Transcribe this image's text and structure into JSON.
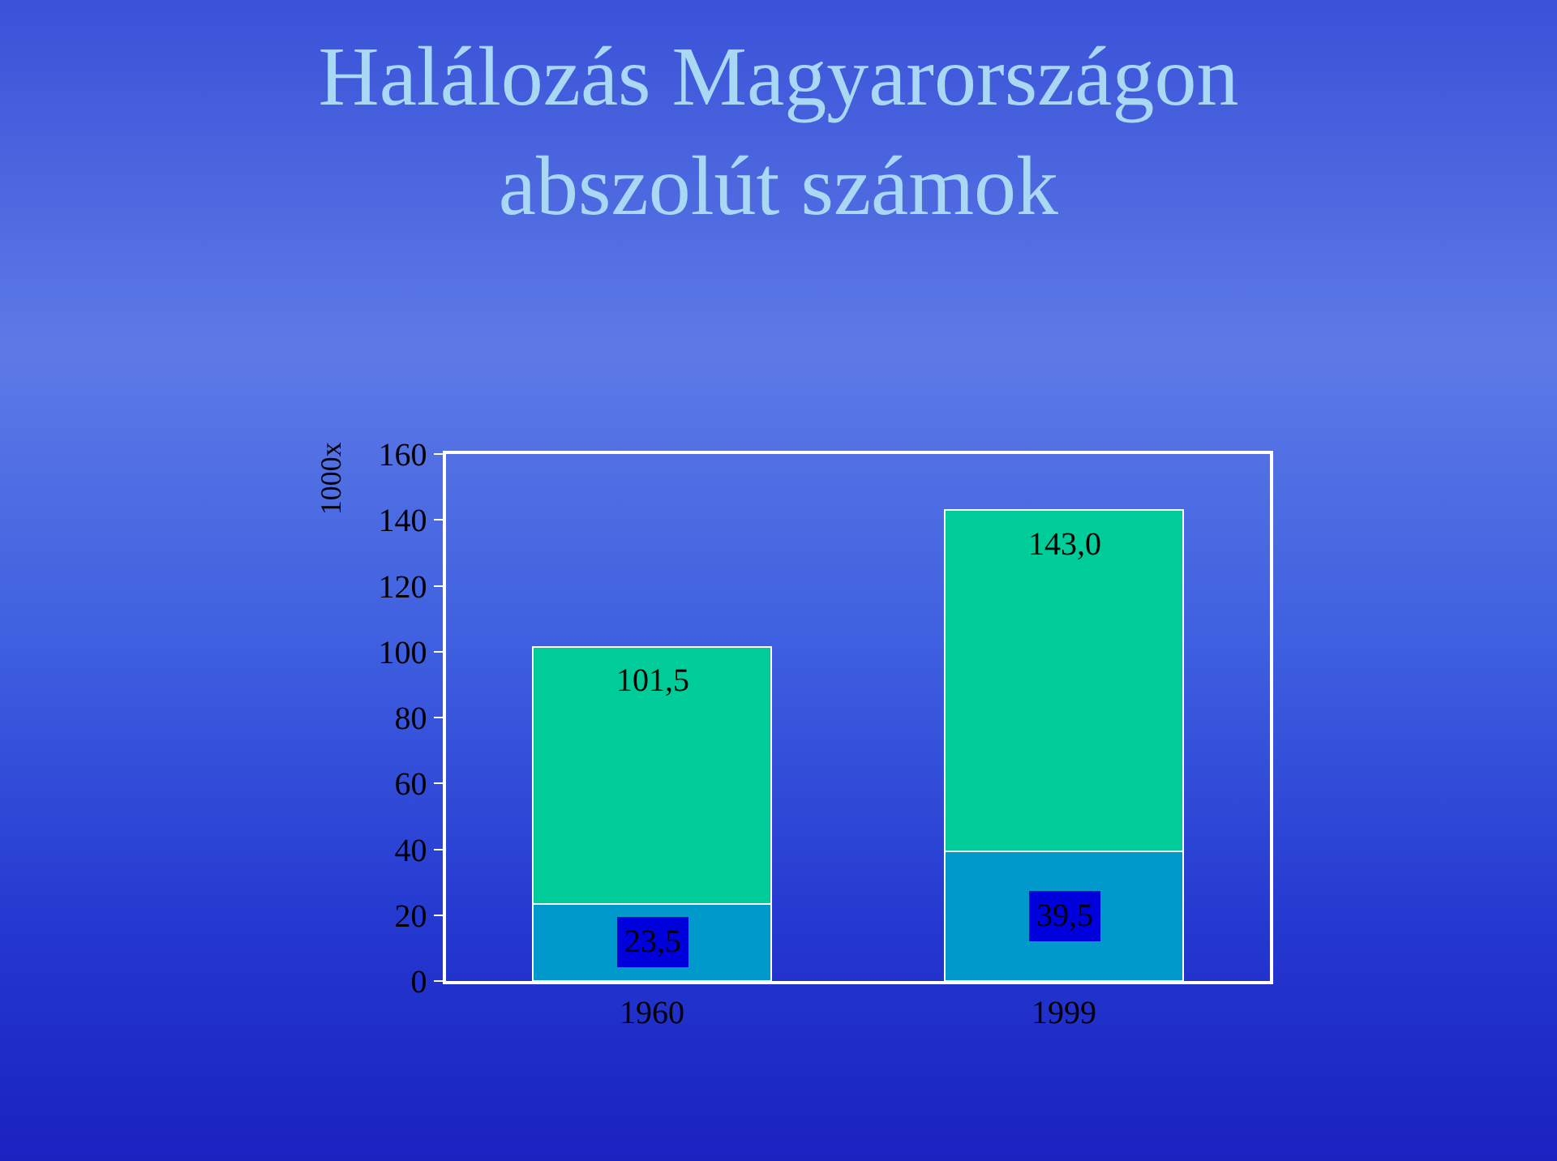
{
  "chart_data": {
    "type": "bar",
    "title": "Halálozás Magyarországon",
    "subtitle": "abszolút számok",
    "ylabel": "1000x",
    "categories": [
      "1960",
      "1999"
    ],
    "stacked": true,
    "series": [
      {
        "color": "#0099cc",
        "values": [
          23.5,
          39.5
        ],
        "value_labels": [
          "23,5",
          "39,5"
        ]
      },
      {
        "color": "#00cc99",
        "values": [
          78,
          103.5
        ]
      }
    ],
    "totals": [
      "101,5",
      "143,0"
    ],
    "ylim": [
      0,
      160
    ],
    "yticks": [
      0,
      20,
      40,
      60,
      80,
      100,
      120,
      140,
      160
    ],
    "grid": false
  }
}
